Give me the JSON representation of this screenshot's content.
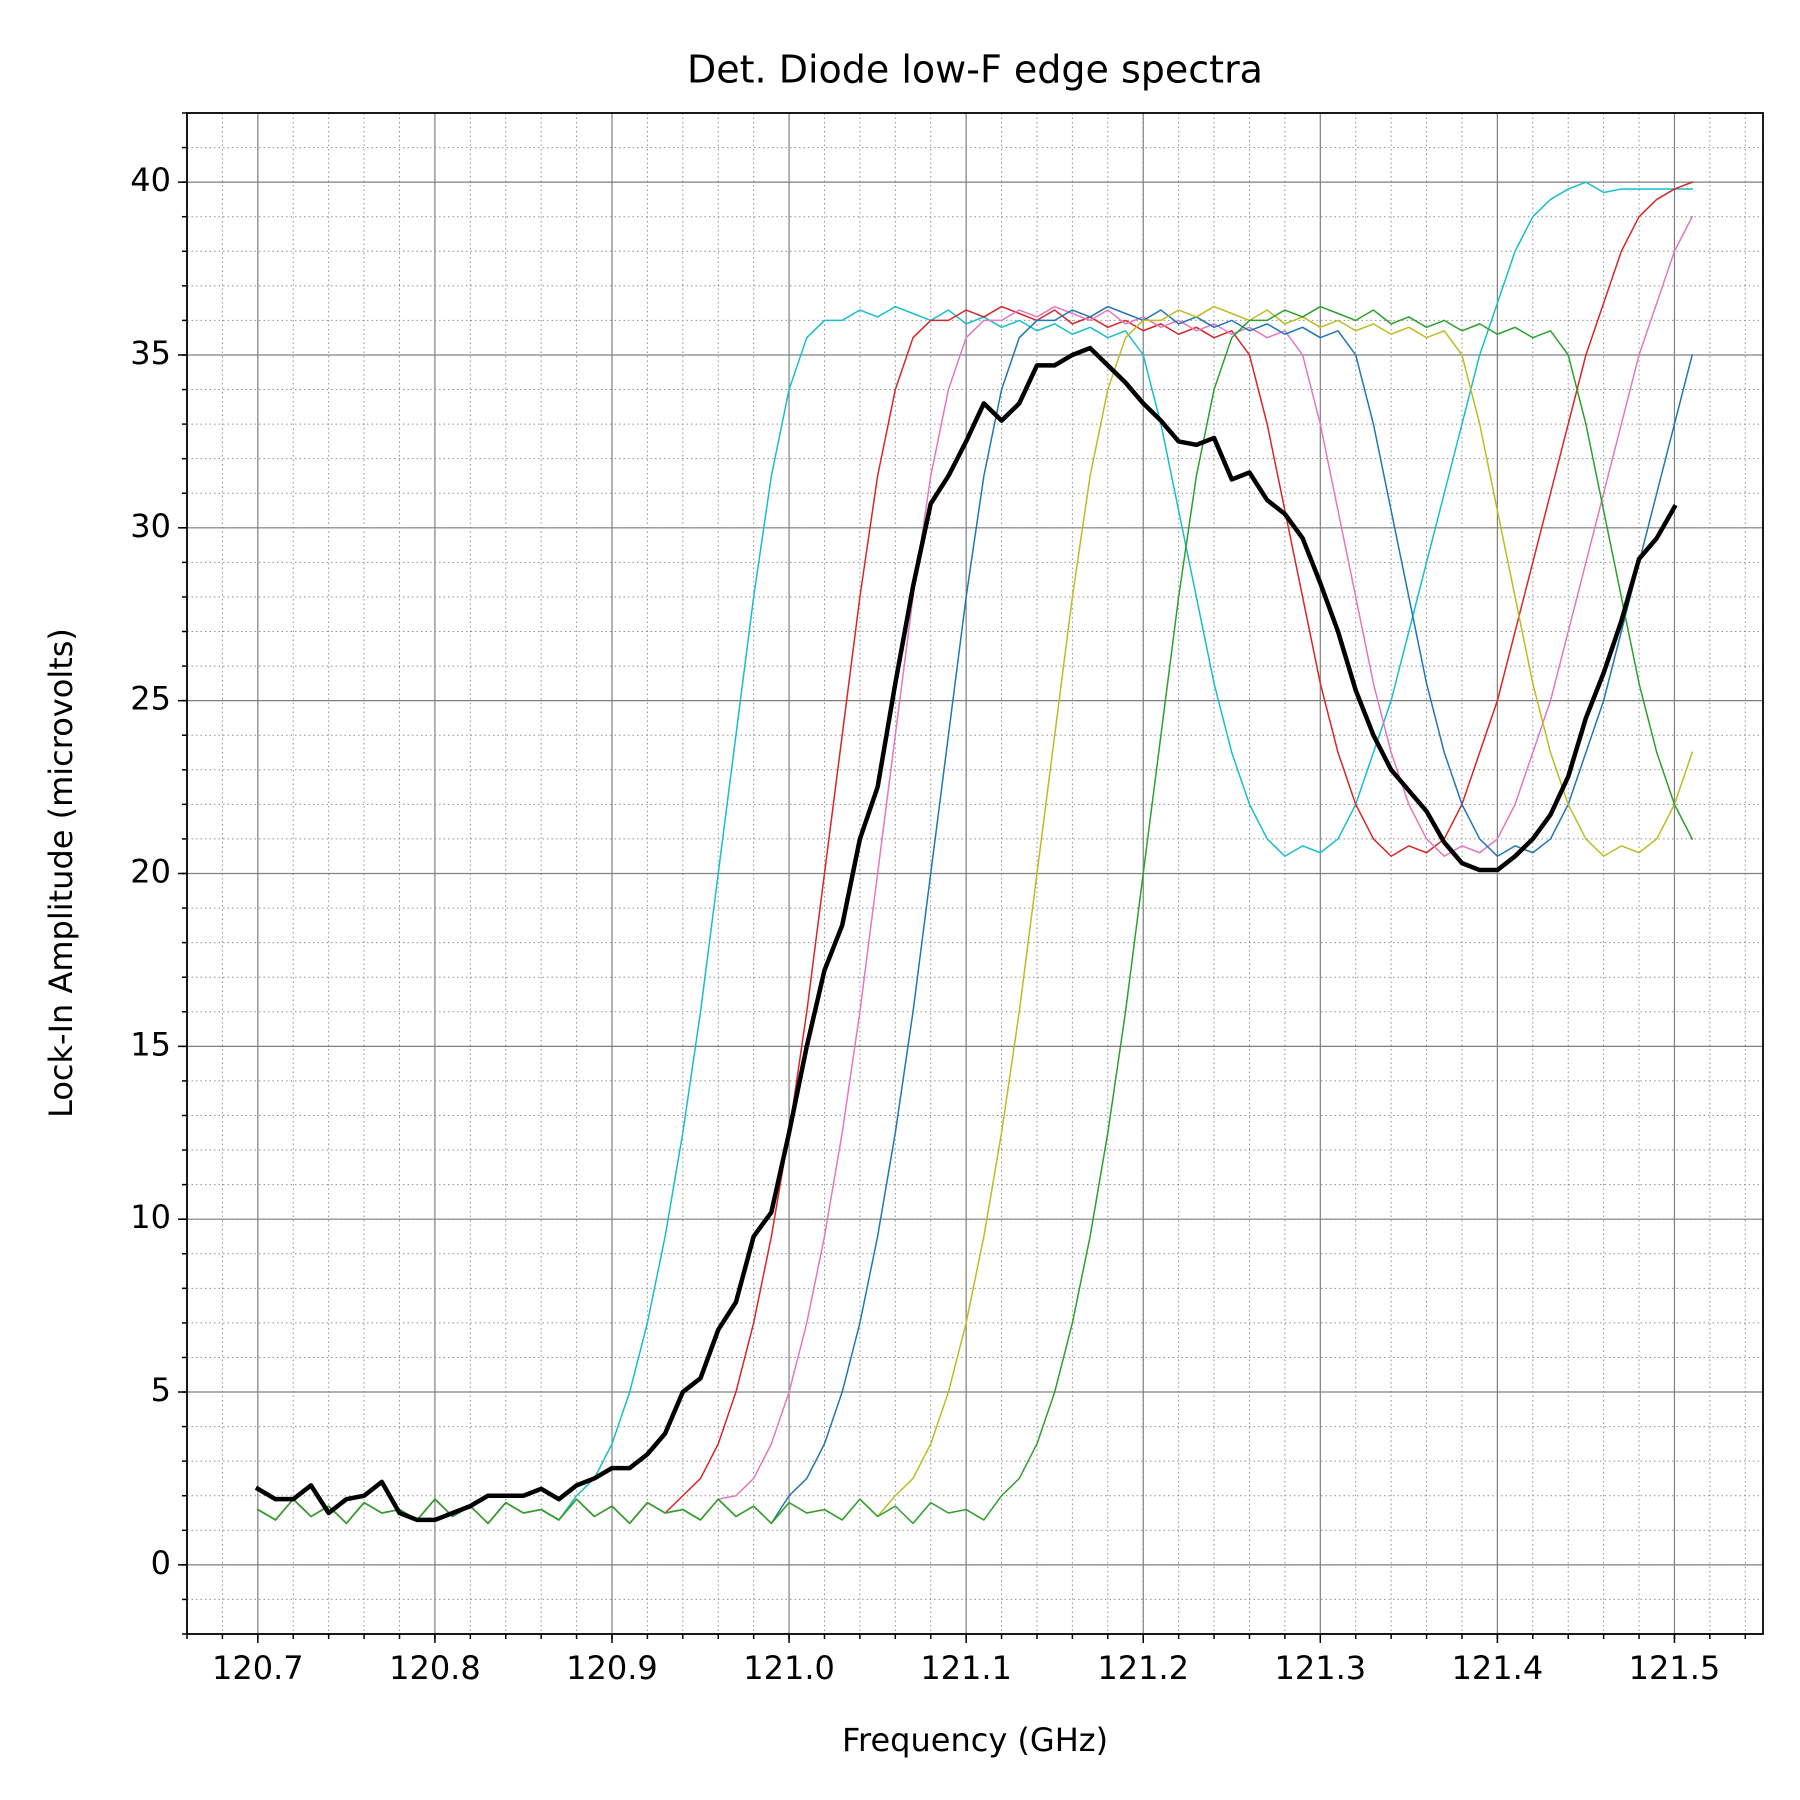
{
  "chart_data": {
    "type": "line",
    "title": "Det. Diode low-F edge spectra",
    "xlabel": "Frequency (GHz)",
    "ylabel": "Lock-In Amplitude (microvolts)",
    "x": [
      120.7,
      120.71,
      120.72,
      120.73,
      120.74,
      120.75,
      120.76,
      120.77,
      120.78,
      120.79,
      120.8,
      120.81,
      120.82,
      120.83,
      120.84,
      120.85,
      120.86,
      120.87,
      120.88,
      120.89,
      120.9,
      120.91,
      120.92,
      120.93,
      120.94,
      120.95,
      120.96,
      120.97,
      120.98,
      120.99,
      121.0,
      121.01,
      121.02,
      121.03,
      121.04,
      121.05,
      121.06,
      121.07,
      121.08,
      121.09,
      121.1,
      121.11,
      121.12,
      121.13,
      121.14,
      121.15,
      121.16,
      121.17,
      121.18,
      121.19,
      121.2,
      121.21,
      121.22,
      121.23,
      121.24,
      121.25,
      121.26,
      121.27,
      121.28,
      121.29,
      121.3,
      121.31,
      121.32,
      121.33,
      121.34,
      121.35,
      121.36,
      121.37,
      121.38,
      121.39,
      121.4,
      121.41,
      121.42,
      121.43,
      121.44,
      121.45,
      121.46,
      121.47,
      121.48,
      121.49,
      121.5,
      121.51
    ],
    "series": [
      {
        "color": "#17becf",
        "linewidth": 1.5,
        "values": [
          1.6,
          1.3,
          1.9,
          1.4,
          1.7,
          1.2,
          1.8,
          1.5,
          1.6,
          1.3,
          1.9,
          1.4,
          1.7,
          1.2,
          1.8,
          1.5,
          1.6,
          1.3,
          2,
          2.5,
          3.5,
          5,
          7,
          9.5,
          12.5,
          16,
          20,
          24,
          28,
          31.5,
          34,
          35.5,
          36,
          36,
          36.3,
          36.1,
          36.4,
          36.2,
          36,
          36.3,
          35.9,
          36.1,
          35.8,
          36,
          35.7,
          35.9,
          35.6,
          35.8,
          35.5,
          35.7,
          35,
          33,
          30.5,
          28,
          25.5,
          23.5,
          22,
          21,
          20.5,
          20.8,
          20.6,
          21,
          22,
          23.5,
          25,
          27,
          29,
          31,
          33,
          35,
          36.5,
          38,
          39,
          39.5,
          39.8,
          40,
          39.7,
          39.8,
          39.8,
          39.8,
          39.8,
          39.8
        ]
      },
      {
        "color": "#d62728",
        "linewidth": 1.5,
        "values": [
          1.6,
          1.3,
          1.9,
          1.4,
          1.7,
          1.2,
          1.8,
          1.5,
          1.6,
          1.3,
          1.9,
          1.4,
          1.7,
          1.2,
          1.8,
          1.5,
          1.6,
          1.3,
          1.9,
          1.4,
          1.7,
          1.2,
          1.8,
          1.5,
          2,
          2.5,
          3.5,
          5,
          7,
          9.5,
          12.5,
          16,
          20,
          24,
          28,
          31.5,
          34,
          35.5,
          36,
          36,
          36.3,
          36.1,
          36.4,
          36.2,
          36,
          36.3,
          35.9,
          36.1,
          35.8,
          36,
          35.7,
          35.9,
          35.6,
          35.8,
          35.5,
          35.7,
          35,
          33,
          30.5,
          28,
          25.5,
          23.5,
          22,
          21,
          20.5,
          20.8,
          20.6,
          21,
          22,
          23.5,
          25,
          27,
          29,
          31,
          33,
          35,
          36.5,
          38,
          39,
          39.5,
          39.8,
          40
        ]
      },
      {
        "color": "#e377c2",
        "linewidth": 1.5,
        "values": [
          1.6,
          1.3,
          1.9,
          1.4,
          1.7,
          1.2,
          1.8,
          1.5,
          1.6,
          1.3,
          1.9,
          1.4,
          1.7,
          1.2,
          1.8,
          1.5,
          1.6,
          1.3,
          1.9,
          1.4,
          1.7,
          1.2,
          1.8,
          1.5,
          1.6,
          1.3,
          1.9,
          2,
          2.5,
          3.5,
          5,
          7,
          9.5,
          12.5,
          16,
          20,
          24,
          28,
          31.5,
          34,
          35.5,
          36,
          36,
          36.3,
          36.1,
          36.4,
          36.2,
          36,
          36.3,
          35.9,
          36.1,
          35.8,
          36,
          35.7,
          35.9,
          35.6,
          35.8,
          35.5,
          35.7,
          35,
          33,
          30.5,
          28,
          25.5,
          23.5,
          22,
          21,
          20.5,
          20.8,
          20.6,
          21,
          22,
          23.5,
          25,
          27,
          29,
          31,
          33,
          35,
          36.5,
          38,
          39
        ]
      },
      {
        "color": "#1f77b4",
        "linewidth": 1.5,
        "values": [
          1.6,
          1.3,
          1.9,
          1.4,
          1.7,
          1.2,
          1.8,
          1.5,
          1.6,
          1.3,
          1.9,
          1.4,
          1.7,
          1.2,
          1.8,
          1.5,
          1.6,
          1.3,
          1.9,
          1.4,
          1.7,
          1.2,
          1.8,
          1.5,
          1.6,
          1.3,
          1.9,
          1.4,
          1.7,
          1.2,
          2,
          2.5,
          3.5,
          5,
          7,
          9.5,
          12.5,
          16,
          20,
          24,
          28,
          31.5,
          34,
          35.5,
          36,
          36,
          36.3,
          36.1,
          36.4,
          36.2,
          36,
          36.3,
          35.9,
          36.1,
          35.8,
          36,
          35.7,
          35.9,
          35.6,
          35.8,
          35.5,
          35.7,
          35,
          33,
          30.5,
          28,
          25.5,
          23.5,
          22,
          21,
          20.5,
          20.8,
          20.6,
          21,
          22,
          23.5,
          25,
          27,
          29,
          31,
          33,
          35
        ]
      },
      {
        "color": "#bcbd22",
        "linewidth": 1.5,
        "values": [
          1.6,
          1.3,
          1.9,
          1.4,
          1.7,
          1.2,
          1.8,
          1.5,
          1.6,
          1.3,
          1.9,
          1.4,
          1.7,
          1.2,
          1.8,
          1.5,
          1.6,
          1.3,
          1.9,
          1.4,
          1.7,
          1.2,
          1.8,
          1.5,
          1.6,
          1.3,
          1.9,
          1.4,
          1.7,
          1.2,
          1.8,
          1.5,
          1.6,
          1.3,
          1.9,
          1.4,
          2,
          2.5,
          3.5,
          5,
          7,
          9.5,
          12.5,
          16,
          20,
          24,
          28,
          31.5,
          34,
          35.5,
          36,
          36,
          36.3,
          36.1,
          36.4,
          36.2,
          36,
          36.3,
          35.9,
          36.1,
          35.8,
          36,
          35.7,
          35.9,
          35.6,
          35.8,
          35.5,
          35.7,
          35,
          33,
          30.5,
          28,
          25.5,
          23.5,
          22,
          21,
          20.5,
          20.8,
          20.6,
          21,
          22,
          23.5
        ]
      },
      {
        "color": "#2ca02c",
        "linewidth": 1.5,
        "values": [
          1.6,
          1.3,
          1.9,
          1.4,
          1.7,
          1.2,
          1.8,
          1.5,
          1.6,
          1.3,
          1.9,
          1.4,
          1.7,
          1.2,
          1.8,
          1.5,
          1.6,
          1.3,
          1.9,
          1.4,
          1.7,
          1.2,
          1.8,
          1.5,
          1.6,
          1.3,
          1.9,
          1.4,
          1.7,
          1.2,
          1.8,
          1.5,
          1.6,
          1.3,
          1.9,
          1.4,
          1.7,
          1.2,
          1.8,
          1.5,
          1.6,
          1.3,
          2,
          2.5,
          3.5,
          5,
          7,
          9.5,
          12.5,
          16,
          20,
          24,
          28,
          31.5,
          34,
          35.5,
          36,
          36,
          36.3,
          36.1,
          36.4,
          36.2,
          36,
          36.3,
          35.9,
          36.1,
          35.8,
          36,
          35.7,
          35.9,
          35.6,
          35.8,
          35.5,
          35.7,
          35,
          33,
          30.5,
          28,
          25.5,
          23.5,
          22,
          21
        ]
      },
      {
        "color": "#000000",
        "linewidth": 4.5,
        "values": [
          2.2,
          1.9,
          1.9,
          2.3,
          1.5,
          1.9,
          2.0,
          2.4,
          1.5,
          1.3,
          1.3,
          1.5,
          1.7,
          2.0,
          2.0,
          2.0,
          2.2,
          1.9,
          2.3,
          2.5,
          2.8,
          2.8,
          3.2,
          3.8,
          5.0,
          5.4,
          6.8,
          7.6,
          9.5,
          10.2,
          12.5,
          15.0,
          17.2,
          18.5,
          21.0,
          22.5,
          25.5,
          28.3,
          30.7,
          31.5,
          32.5,
          33.6,
          33.1,
          33.6,
          34.7,
          34.7,
          35.0,
          35.2,
          34.7,
          34.2,
          33.6,
          33.1,
          32.5,
          32.4,
          32.6,
          31.4,
          31.6,
          30.8,
          30.4,
          29.7,
          28.4,
          27.0,
          25.3,
          24.0,
          23.0,
          22.4,
          21.8,
          20.9,
          20.3,
          20.1,
          20.1,
          20.5,
          21.0,
          21.7,
          22.8,
          24.5,
          25.8,
          27.3,
          29.1,
          29.7,
          30.6,
          null
        ]
      }
    ],
    "xlim": [
      120.66,
      121.55
    ],
    "ylim": [
      -2,
      42
    ],
    "xticks": [
      120.7,
      120.8,
      120.9,
      {
        "value": 121,
        "label": "121.0"
      },
      121.1,
      121.2,
      121.3,
      121.4,
      121.5
    ],
    "yticks": [
      0,
      5,
      10,
      15,
      20,
      25,
      30,
      35,
      40
    ],
    "xminorticks": [
      120.66,
      120.68,
      120.7,
      120.72,
      120.74,
      120.76,
      120.78,
      120.8,
      120.82,
      120.84,
      120.86,
      120.88,
      120.9,
      120.92,
      120.94,
      120.96,
      120.98,
      121.0,
      121.02,
      121.04,
      121.06,
      121.08,
      121.1,
      121.12,
      121.14,
      121.16,
      121.18,
      121.2,
      121.22,
      121.24,
      121.26,
      121.28,
      121.3,
      121.32,
      121.34,
      121.36,
      121.38,
      121.4,
      121.42,
      121.44,
      121.46,
      121.48,
      121.5,
      121.52,
      121.54
    ],
    "yminorticks": [
      -2,
      -1,
      0,
      1,
      2,
      3,
      4,
      5,
      6,
      7,
      8,
      9,
      10,
      11,
      12,
      13,
      14,
      15,
      16,
      17,
      18,
      19,
      20,
      21,
      22,
      23,
      24,
      25,
      26,
      27,
      28,
      29,
      30,
      31,
      32,
      33,
      34,
      35,
      36,
      37,
      38,
      39,
      40,
      41,
      42
    ],
    "grid": true,
    "minor_grid": true
  }
}
